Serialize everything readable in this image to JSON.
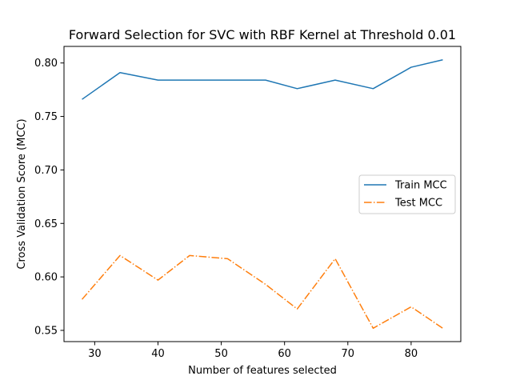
{
  "chart_data": {
    "type": "line",
    "title": "Forward Selection for SVC with RBF Kernel at Threshold 0.01",
    "xlabel": "Number of features selected",
    "ylabel": "Cross Validation Score (MCC)",
    "xlim": [
      25.15,
      87.85
    ],
    "ylim": [
      0.5395,
      0.8155
    ],
    "xticks": [
      30,
      40,
      50,
      60,
      70,
      80
    ],
    "yticks": [
      0.55,
      0.6,
      0.65,
      0.7,
      0.75,
      0.8
    ],
    "xtick_labels": [
      "30",
      "40",
      "50",
      "60",
      "70",
      "80"
    ],
    "ytick_labels": [
      "0.55",
      "0.60",
      "0.65",
      "0.70",
      "0.75",
      "0.80"
    ],
    "grid": false,
    "legend_position": "center-right",
    "series": [
      {
        "name": "Train MCC",
        "color": "#1f77b4",
        "linestyle": "solid",
        "x": [
          28,
          34,
          40,
          45,
          51,
          57,
          62,
          68,
          74,
          80,
          85
        ],
        "y": [
          0.766,
          0.791,
          0.784,
          0.784,
          0.784,
          0.784,
          0.776,
          0.784,
          0.776,
          0.796,
          0.803
        ]
      },
      {
        "name": "Test MCC",
        "color": "#ff7f0e",
        "linestyle": "dashdot",
        "x": [
          28,
          34,
          40,
          45,
          51,
          57,
          62,
          68,
          74,
          80,
          85
        ],
        "y": [
          0.579,
          0.62,
          0.597,
          0.62,
          0.617,
          0.593,
          0.57,
          0.617,
          0.552,
          0.572,
          0.552
        ]
      }
    ]
  }
}
